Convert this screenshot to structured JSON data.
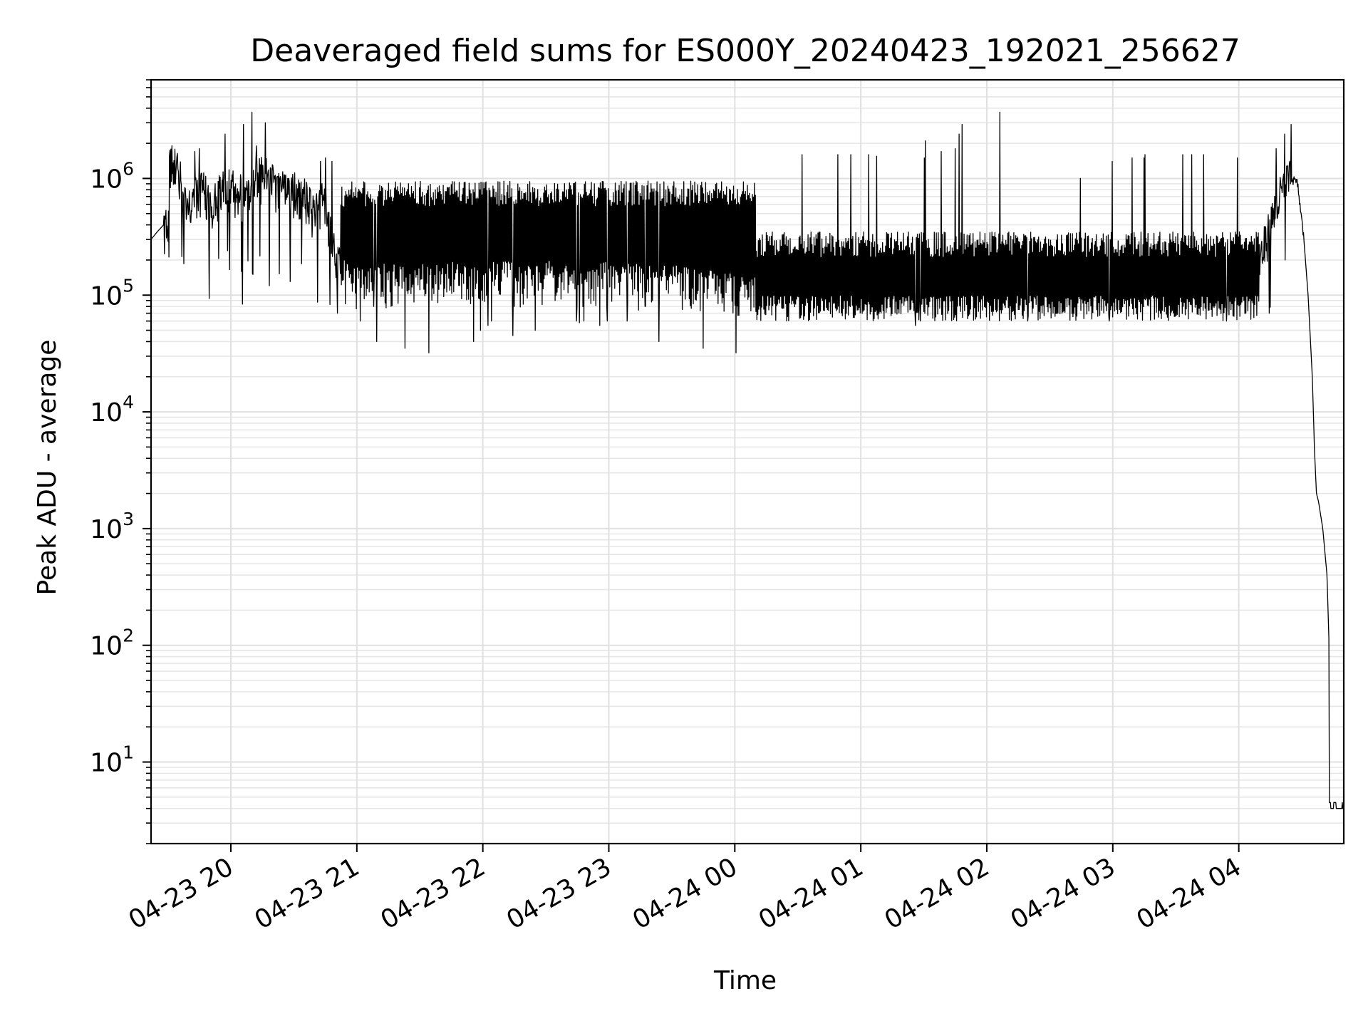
{
  "chart_data": {
    "type": "line",
    "title": "Deaveraged field sums for ES000Y_20240423_192021_256627",
    "xlabel": "Time",
    "ylabel": "Peak ADU - average",
    "yscale": "log",
    "grid": true,
    "line_color": "#000000",
    "x_range": [
      "2024-04-23 19:22",
      "2024-04-24 04:50"
    ],
    "ylim": [
      2.0,
      7000000
    ],
    "x_ticks": [
      {
        "value": "2024-04-23 20:00",
        "label": "04-23 20"
      },
      {
        "value": "2024-04-23 21:00",
        "label": "04-23 21"
      },
      {
        "value": "2024-04-23 22:00",
        "label": "04-23 22"
      },
      {
        "value": "2024-04-23 23:00",
        "label": "04-23 23"
      },
      {
        "value": "2024-04-24 00:00",
        "label": "04-24 00"
      },
      {
        "value": "2024-04-24 01:00",
        "label": "04-24 01"
      },
      {
        "value": "2024-04-24 02:00",
        "label": "04-24 02"
      },
      {
        "value": "2024-04-24 03:00",
        "label": "04-24 03"
      },
      {
        "value": "2024-04-24 04:00",
        "label": "04-24 04"
      }
    ],
    "y_ticks": [
      {
        "value": 10,
        "base": "10",
        "exp": "1"
      },
      {
        "value": 100,
        "base": "10",
        "exp": "2"
      },
      {
        "value": 1000,
        "base": "10",
        "exp": "3"
      },
      {
        "value": 10000,
        "base": "10",
        "exp": "4"
      },
      {
        "value": 100000,
        "base": "10",
        "exp": "5"
      },
      {
        "value": 1000000,
        "base": "10",
        "exp": "6"
      }
    ],
    "series": [
      {
        "x": [
          "2024-04-23 19:22",
          "2024-04-23 19:25",
          "2024-04-23 19:28",
          "2024-04-23 19:30",
          "2024-04-23 19:31",
          "2024-04-23 19:33",
          "2024-04-23 19:36",
          "2024-04-23 19:39",
          "2024-04-23 19:43",
          "2024-04-23 19:47",
          "2024-04-23 19:52",
          "2024-04-23 19:57",
          "2024-04-23 20:02",
          "2024-04-23 20:07",
          "2024-04-23 20:12",
          "2024-04-23 20:17",
          "2024-04-23 20:21",
          "2024-04-23 20:25",
          "2024-04-23 20:30",
          "2024-04-23 20:35",
          "2024-04-23 20:40",
          "2024-04-23 20:45",
          "2024-04-23 20:48",
          "2024-04-23 20:50",
          "2024-04-23 20:55",
          "2024-04-23 21:00",
          "2024-04-23 21:10",
          "2024-04-23 21:20",
          "2024-04-23 21:30",
          "2024-04-23 21:40",
          "2024-04-23 21:50",
          "2024-04-23 22:00",
          "2024-04-23 22:10",
          "2024-04-23 22:20",
          "2024-04-23 22:30",
          "2024-04-23 22:40",
          "2024-04-23 22:50",
          "2024-04-23 23:00",
          "2024-04-23 23:10",
          "2024-04-23 23:20",
          "2024-04-23 23:30",
          "2024-04-23 23:40",
          "2024-04-23 23:50",
          "2024-04-24 00:00",
          "2024-04-24 00:15",
          "2024-04-24 00:30",
          "2024-04-24 00:45",
          "2024-04-24 01:00",
          "2024-04-24 01:15",
          "2024-04-24 01:30",
          "2024-04-24 01:45",
          "2024-04-24 02:00",
          "2024-04-24 02:15",
          "2024-04-24 02:30",
          "2024-04-24 02:45",
          "2024-04-24 03:00",
          "2024-04-24 03:15",
          "2024-04-24 03:30",
          "2024-04-24 03:45",
          "2024-04-24 04:00",
          "2024-04-24 04:05",
          "2024-04-24 04:10",
          "2024-04-24 04:15",
          "2024-04-24 04:18",
          "2024-04-24 04:22",
          "2024-04-24 04:25",
          "2024-04-24 04:28",
          "2024-04-24 04:31",
          "2024-04-24 04:33",
          "2024-04-24 04:35",
          "2024-04-24 04:36",
          "2024-04-24 04:37",
          "2024-04-24 04:38",
          "2024-04-24 04:40",
          "2024-04-24 04:42",
          "2024-04-24 04:43",
          "2024-04-24 04:44",
          "2024-04-24 04:45",
          "2024-04-24 04:47",
          "2024-04-24 04:50"
        ],
        "y_base": [
          300000,
          350000,
          400000,
          420000,
          1500000,
          1300000,
          1000000,
          500000,
          700000,
          800000,
          600000,
          900000,
          800000,
          700000,
          1000000,
          1200000,
          900000,
          800000,
          800000,
          700000,
          500000,
          700000,
          300000,
          200000,
          200000,
          180000,
          200000,
          180000,
          200000,
          190000,
          200000,
          190000,
          200000,
          180000,
          200000,
          190000,
          180000,
          200000,
          190000,
          180000,
          190000,
          180000,
          170000,
          160000,
          150000,
          130000,
          120000,
          110000,
          100000,
          95000,
          92000,
          90000,
          90000,
          88000,
          85000,
          85000,
          83000,
          80000,
          78000,
          80000,
          120000,
          200000,
          400000,
          600000,
          900000,
          1000000,
          900000,
          300000,
          100000,
          20000,
          5000,
          2000,
          1700,
          1000,
          400,
          100,
          4,
          4,
          4,
          4
        ],
        "spikes_high": [
          1700000,
          1800000,
          2400000,
          2900000,
          3700000,
          1900000,
          3000000,
          1050000,
          1000000,
          1000000,
          1000000,
          1400000,
          1500000,
          1400000,
          1500000,
          1500000,
          1600000,
          1600000,
          1600000,
          1600000,
          1600000,
          1600000,
          1550000,
          1500000,
          1500000,
          2100000
        ],
        "spikes_low": [
          60000,
          80000,
          40000,
          35000,
          32000,
          40000,
          50000,
          55000,
          60000,
          45000,
          50000,
          60000,
          58000,
          60000,
          55000,
          60000
        ]
      }
    ]
  }
}
